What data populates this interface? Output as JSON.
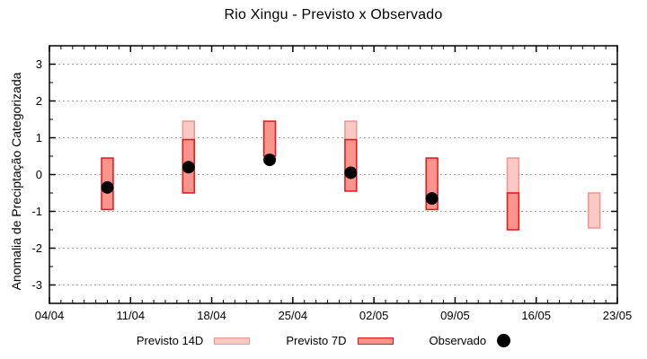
{
  "title": "Rio Xingu - Previsto x Observado",
  "chart_data": {
    "type": "bar",
    "subtype": "range-bars-with-observed-points",
    "title": "Rio Xingu - Previsto x Observado",
    "xlabel": "",
    "ylabel": "Anomalia de Preciptação Categorizada",
    "ylim": [
      -3.5,
      3.5
    ],
    "yticks": [
      3,
      2,
      1,
      0,
      -1,
      -2,
      -3
    ],
    "y_minor_tick_step": 0.5,
    "grid": "horizontal dotted gridlines at integer y values",
    "x_axis": {
      "start_label": "04/04",
      "end_label": "23/05",
      "total_days": 49,
      "major_tick_every_days": 7,
      "minor_tick_every_days": 1,
      "tick_labels": [
        "04/04",
        "11/04",
        "18/04",
        "25/04",
        "02/05",
        "09/05",
        "16/05",
        "23/05"
      ]
    },
    "bar_width_days": 1,
    "series_meta": [
      {
        "name": "Previsto 14D",
        "fill": "#fbc9c3",
        "stroke": "#f0948d"
      },
      {
        "name": "Previsto 7D",
        "fill": "#fb948d",
        "stroke": "#ee1111"
      },
      {
        "name": "Observado",
        "fill": "#000000"
      }
    ],
    "bars": [
      {
        "date": "09/04",
        "day": 5,
        "previsto14_range": null,
        "previsto7_range": [
          0.45,
          -0.95
        ],
        "observado": -0.35
      },
      {
        "date": "16/04",
        "day": 12,
        "previsto14_range": [
          1.45,
          0.95
        ],
        "previsto7_range": [
          0.95,
          -0.5
        ],
        "observado": 0.2
      },
      {
        "date": "23/04",
        "day": 19,
        "previsto14_range": null,
        "previsto7_range": [
          1.45,
          0.5
        ],
        "observado": 0.4
      },
      {
        "date": "30/04",
        "day": 26,
        "previsto14_range": [
          1.45,
          0.95
        ],
        "previsto7_range": [
          0.95,
          -0.45
        ],
        "observado": 0.05
      },
      {
        "date": "07/05",
        "day": 33,
        "previsto14_range": null,
        "previsto7_range": [
          0.45,
          -0.95
        ],
        "observado": -0.65
      },
      {
        "date": "14/05",
        "day": 40,
        "previsto14_range": [
          0.45,
          -0.5
        ],
        "previsto7_range": [
          -0.5,
          -1.5
        ],
        "observado": null
      },
      {
        "date": "21/05",
        "day": 47,
        "previsto14_range": [
          -0.5,
          -1.45
        ],
        "previsto7_range": null,
        "observado": null
      }
    ],
    "legend_position": "below chart, centered"
  },
  "legend": {
    "previsto14_label": "Previsto 14D",
    "previsto7_label": "Previsto 7D",
    "observado_label": "Observado"
  },
  "colors": {
    "background": "#ffffff",
    "axis": "#000000",
    "grid": "#a0a0a0",
    "previsto14_fill": "#fbc9c3",
    "previsto14_stroke": "#f0948d",
    "previsto7_fill": "#fb948d",
    "previsto7_stroke": "#ee1111",
    "observado": "#000000"
  }
}
